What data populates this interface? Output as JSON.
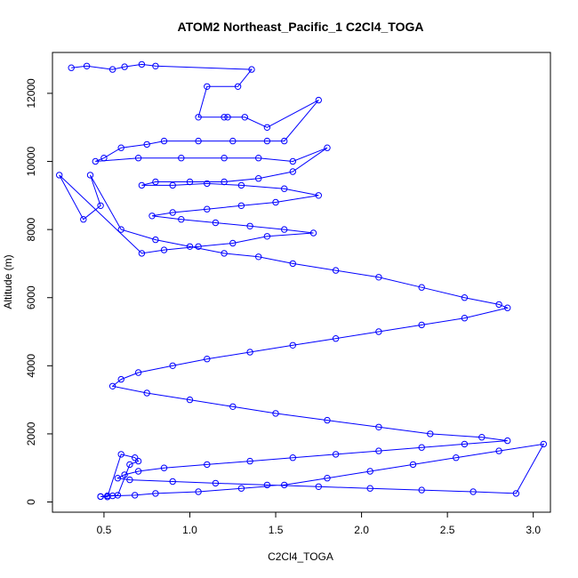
{
  "chart_data": {
    "type": "scatter",
    "title": "ATOM2 Northeast_Pacific_1 C2Cl4_TOGA",
    "xlabel": "C2Cl4_TOGA",
    "ylabel": "Altitude (m)",
    "xlim": [
      0.2,
      3.1
    ],
    "ylim": [
      -300,
      13200
    ],
    "xticks": [
      "0.5",
      "1.0",
      "1.5",
      "2.0",
      "2.5",
      "3.0"
    ],
    "yticks": [
      "0",
      "2000",
      "4000",
      "6000",
      "8000",
      "10000",
      "12000"
    ],
    "grid": false,
    "legend": "none",
    "colors": {
      "series": "#0000ff",
      "axis": "#000000",
      "background": "#ffffff"
    },
    "series": [
      {
        "x": [
          0.31,
          0.4,
          0.55,
          0.62,
          0.72,
          0.8,
          1.36,
          1.28,
          1.1,
          1.05,
          1.2,
          1.22,
          1.32,
          1.45,
          1.75,
          1.55,
          1.45,
          1.25,
          1.05,
          0.85,
          0.75,
          0.6,
          0.5,
          0.45,
          0.7,
          0.95,
          1.2,
          1.4,
          1.6,
          1.8,
          1.6,
          1.4,
          1.2,
          1.0,
          0.8,
          0.72,
          0.9,
          1.1,
          1.3,
          1.55,
          1.75,
          1.5,
          1.3,
          1.1,
          0.9,
          0.78,
          0.95,
          1.15,
          1.35,
          1.55,
          1.72,
          1.45,
          1.25,
          1.05,
          0.85,
          0.72,
          0.24,
          0.38,
          0.48,
          0.42,
          0.6,
          0.8,
          1.0,
          1.2,
          1.4,
          1.6,
          1.85,
          2.1,
          2.35,
          2.6,
          2.8,
          2.85,
          2.6,
          2.35,
          2.1,
          1.85,
          1.6,
          1.35,
          1.1,
          0.9,
          0.7,
          0.6,
          0.55,
          0.75,
          1.0,
          1.25,
          1.5,
          1.8,
          2.1,
          2.4,
          2.7,
          2.85,
          2.6,
          2.35,
          2.1,
          1.85,
          1.6,
          1.35,
          1.1,
          0.85,
          0.7,
          0.62,
          0.58,
          0.65,
          0.9,
          1.15,
          1.45,
          1.75,
          2.05,
          2.35,
          2.65,
          2.9,
          3.06,
          2.8,
          2.55,
          2.3,
          2.05,
          1.8,
          1.55,
          1.3,
          1.05,
          0.8,
          0.68,
          0.55,
          0.48,
          0.52,
          0.6,
          0.68,
          0.7,
          0.65,
          0.58,
          0.52,
          0.48
        ],
        "y": [
          12750,
          12800,
          12700,
          12780,
          12850,
          12800,
          12700,
          12200,
          12200,
          11300,
          11300,
          11300,
          11300,
          11000,
          11800,
          10600,
          10600,
          10600,
          10600,
          10600,
          10500,
          10400,
          10100,
          10000,
          10100,
          10100,
          10100,
          10100,
          10000,
          10400,
          9700,
          9500,
          9400,
          9400,
          9400,
          9300,
          9300,
          9350,
          9300,
          9200,
          9000,
          8800,
          8700,
          8600,
          8500,
          8400,
          8300,
          8200,
          8100,
          8000,
          7900,
          7800,
          7600,
          7500,
          7400,
          7300,
          9600,
          8300,
          8700,
          9600,
          8000,
          7700,
          7500,
          7300,
          7200,
          7000,
          6800,
          6600,
          6300,
          6000,
          5800,
          5700,
          5400,
          5200,
          5000,
          4800,
          4600,
          4400,
          4200,
          4000,
          3800,
          3600,
          3400,
          3200,
          3000,
          2800,
          2600,
          2400,
          2200,
          2000,
          1900,
          1800,
          1700,
          1600,
          1500,
          1400,
          1300,
          1200,
          1100,
          1000,
          900,
          800,
          700,
          650,
          600,
          550,
          500,
          450,
          400,
          350,
          300,
          250,
          1700,
          1500,
          1300,
          1100,
          900,
          700,
          500,
          400,
          300,
          250,
          200,
          180,
          160,
          150,
          1400,
          1300,
          1200,
          1100,
          200,
          180,
          160
        ]
      }
    ]
  }
}
